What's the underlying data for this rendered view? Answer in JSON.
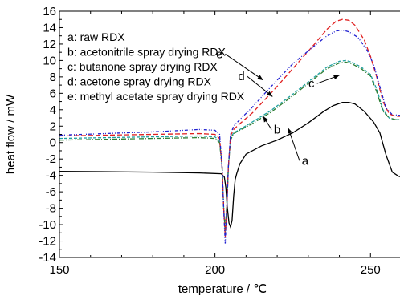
{
  "chart_data": {
    "type": "line",
    "xlabel": "temperature / ℃",
    "ylabel": "heat flow / mW",
    "xlim": [
      150,
      260
    ],
    "ylim": [
      -14,
      16
    ],
    "xticks": [
      150,
      200,
      250
    ],
    "yticks": [
      -14,
      -12,
      -10,
      -8,
      -6,
      -4,
      -2,
      0,
      2,
      4,
      6,
      8,
      10,
      12,
      14,
      16
    ],
    "grid": false,
    "legend": {
      "placement": "top-left",
      "entries": [
        "a: raw RDX",
        "b: acetonitrile spray drying RDX",
        "c: butanone spray drying RDX",
        "d: acetone spray drying RDX",
        "e: methyl acetate spray drying RDX"
      ]
    },
    "series": [
      {
        "label": "a",
        "color": "#000000",
        "dash": "solid",
        "x": [
          150,
          180,
          195,
          202,
          203,
          203.5,
          204,
          204.5,
          205,
          205.5,
          206,
          206.5,
          207,
          208,
          210,
          215,
          220,
          225,
          230,
          235,
          238,
          241,
          243,
          245,
          248,
          251,
          253,
          255,
          257,
          259,
          260
        ],
        "y": [
          -3.5,
          -3.6,
          -3.7,
          -3.8,
          -4.2,
          -5.5,
          -8,
          -9.8,
          -10.3,
          -9.5,
          -6.5,
          -4.5,
          -3.8,
          -2.6,
          -1.4,
          -0.4,
          0.3,
          1.2,
          2.4,
          3.8,
          4.5,
          4.9,
          4.9,
          4.7,
          3.8,
          2.5,
          1.2,
          -1.5,
          -3.6,
          -4.1,
          -4.2
        ]
      },
      {
        "label": "b",
        "color": "#1fa0a0",
        "dash": "4,2",
        "x": [
          150,
          180,
          195,
          200,
          201.5,
          202.3,
          202.8,
          203.3,
          203.8,
          204.3,
          205,
          206,
          208,
          212,
          218,
          225,
          232,
          236,
          240,
          242,
          244,
          247,
          250,
          252,
          254,
          256,
          258,
          260
        ],
        "y": [
          0.5,
          0.7,
          0.8,
          0.7,
          0.2,
          -3,
          -8,
          -11,
          -8,
          -3,
          0.5,
          1.2,
          1.6,
          2.5,
          3.9,
          5.9,
          8,
          9.2,
          9.9,
          10,
          9.8,
          9.2,
          8.3,
          6.5,
          4,
          3,
          2.8,
          2.8
        ]
      },
      {
        "label": "c",
        "color": "#2e7d32",
        "dash": "6,2,1,2",
        "x": [
          150,
          180,
          195,
          200,
          201.5,
          202.3,
          202.8,
          203.3,
          203.8,
          204.3,
          205,
          206,
          208,
          212,
          218,
          225,
          232,
          236,
          240,
          242,
          244,
          247,
          250,
          252,
          254,
          256,
          258,
          260
        ],
        "y": [
          0.3,
          0.5,
          0.6,
          0.5,
          0,
          -3,
          -8,
          -10.5,
          -7.5,
          -3,
          0.3,
          1.1,
          1.5,
          2.3,
          3.7,
          5.7,
          7.8,
          9,
          9.7,
          9.8,
          9.6,
          9,
          8.1,
          6.2,
          3.8,
          3,
          2.8,
          2.8
        ]
      },
      {
        "label": "d",
        "color": "#e02020",
        "dash": "6,3",
        "x": [
          150,
          180,
          195,
          200,
          201.5,
          202.3,
          202.8,
          203.3,
          203.8,
          204.3,
          205,
          206,
          208,
          212,
          218,
          225,
          232,
          236,
          239,
          241,
          243,
          245,
          248,
          250,
          252,
          254,
          256,
          258,
          260
        ],
        "y": [
          0.8,
          1,
          1.1,
          1,
          0.5,
          -3,
          -8,
          -11.5,
          -8,
          -3,
          0.8,
          1.6,
          2.3,
          3.6,
          6,
          9,
          12,
          13.8,
          14.8,
          15,
          14.9,
          14.3,
          12.5,
          10.5,
          8,
          5,
          3.5,
          3.2,
          3.2
        ]
      },
      {
        "label": "e",
        "color": "#2020d0",
        "dash": "4,2,1,2,1,2",
        "x": [
          150,
          180,
          195,
          200,
          201.5,
          202.3,
          202.8,
          203.3,
          203.8,
          204.3,
          205,
          206,
          208,
          212,
          218,
          225,
          232,
          236,
          239,
          241,
          243,
          246,
          249,
          251,
          253,
          255,
          257,
          260
        ],
        "y": [
          0.9,
          1.3,
          1.6,
          1.5,
          1,
          -3,
          -8,
          -12.3,
          -8,
          -3,
          1,
          2,
          2.8,
          4.3,
          6.8,
          9.6,
          11.8,
          13,
          13.6,
          13.7,
          13.5,
          12.8,
          11.2,
          9.5,
          6.8,
          4.2,
          3.4,
          3.3
        ]
      }
    ],
    "annotations": [
      {
        "text": "a",
        "x": 229,
        "y": -2.7,
        "arrow_to": [
          223.5,
          1.8
        ]
      },
      {
        "text": "b",
        "x": 220,
        "y": 1.1,
        "arrow_to": [
          215.5,
          3.2
        ]
      },
      {
        "text": "c",
        "x": 231,
        "y": 6.7,
        "arrow_to": [
          240,
          8.2
        ]
      },
      {
        "text": "d",
        "x": 208.5,
        "y": 7.6,
        "arrow_to": [
          218.5,
          5.6
        ]
      },
      {
        "text": "e",
        "x": 201.5,
        "y": 10.3,
        "arrow_to": [
          215.5,
          7.6
        ]
      }
    ]
  }
}
